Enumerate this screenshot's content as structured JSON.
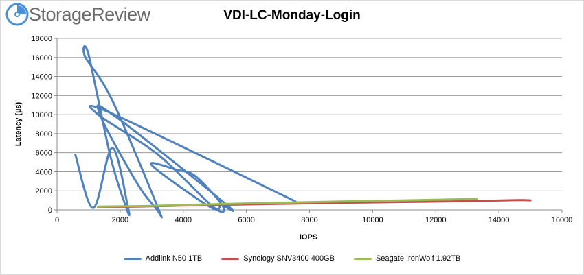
{
  "brand": {
    "name": "StorageReview",
    "accent": "#4a90d9"
  },
  "chart_data": {
    "type": "line",
    "title": "VDI-LC-Monday-Login",
    "xlabel": "IOPS",
    "ylabel": "Latency (µs)",
    "xlim": [
      0,
      16000
    ],
    "ylim": [
      0,
      18000
    ],
    "xticks": [
      "0",
      "2000",
      "4000",
      "6000",
      "8000",
      "10000",
      "12000",
      "14000",
      "16000"
    ],
    "yticks": [
      "0",
      "2000",
      "4000",
      "6000",
      "8000",
      "10000",
      "12000",
      "14000",
      "16000",
      "18000"
    ],
    "grid": true,
    "legend_position": "bottom",
    "series": [
      {
        "name": "Addlink N50 1TB",
        "color": "#4f81bd",
        "points": [
          [
            580,
            5800
          ],
          [
            1150,
            200
          ],
          [
            1750,
            6500
          ],
          [
            2250,
            200
          ],
          [
            2200,
            150
          ],
          [
            1700,
            5500
          ],
          [
            1000,
            16300
          ],
          [
            900,
            16000
          ],
          [
            1750,
            11500
          ],
          [
            3200,
            200
          ],
          [
            3150,
            100
          ],
          [
            2500,
            3000
          ],
          [
            1350,
            10100
          ],
          [
            1850,
            9800
          ],
          [
            5350,
            600
          ],
          [
            5200,
            500
          ],
          [
            4850,
            300
          ],
          [
            3000,
            4700
          ],
          [
            3800,
            4200
          ],
          [
            4400,
            3500
          ],
          [
            5250,
            400
          ],
          [
            4950,
            300
          ],
          [
            3200,
            5800
          ],
          [
            1300,
            10000
          ],
          [
            1750,
            10100
          ],
          [
            7550,
            900
          ]
        ]
      },
      {
        "name": "Synology SNV3400 400GB",
        "color": "#c0504d",
        "points": [
          [
            1300,
            260
          ],
          [
            3000,
            380
          ],
          [
            5000,
            520
          ],
          [
            7000,
            630
          ],
          [
            9000,
            740
          ],
          [
            11000,
            830
          ],
          [
            13000,
            920
          ],
          [
            14600,
            1020
          ],
          [
            15000,
            1000
          ]
        ]
      },
      {
        "name": "Seagate IronWolf 1.92TB",
        "color": "#9bbb59",
        "points": [
          [
            1300,
            340
          ],
          [
            3000,
            420
          ],
          [
            5000,
            600
          ],
          [
            7000,
            750
          ],
          [
            9000,
            880
          ],
          [
            11000,
            1000
          ],
          [
            13300,
            1150
          ]
        ]
      }
    ]
  }
}
